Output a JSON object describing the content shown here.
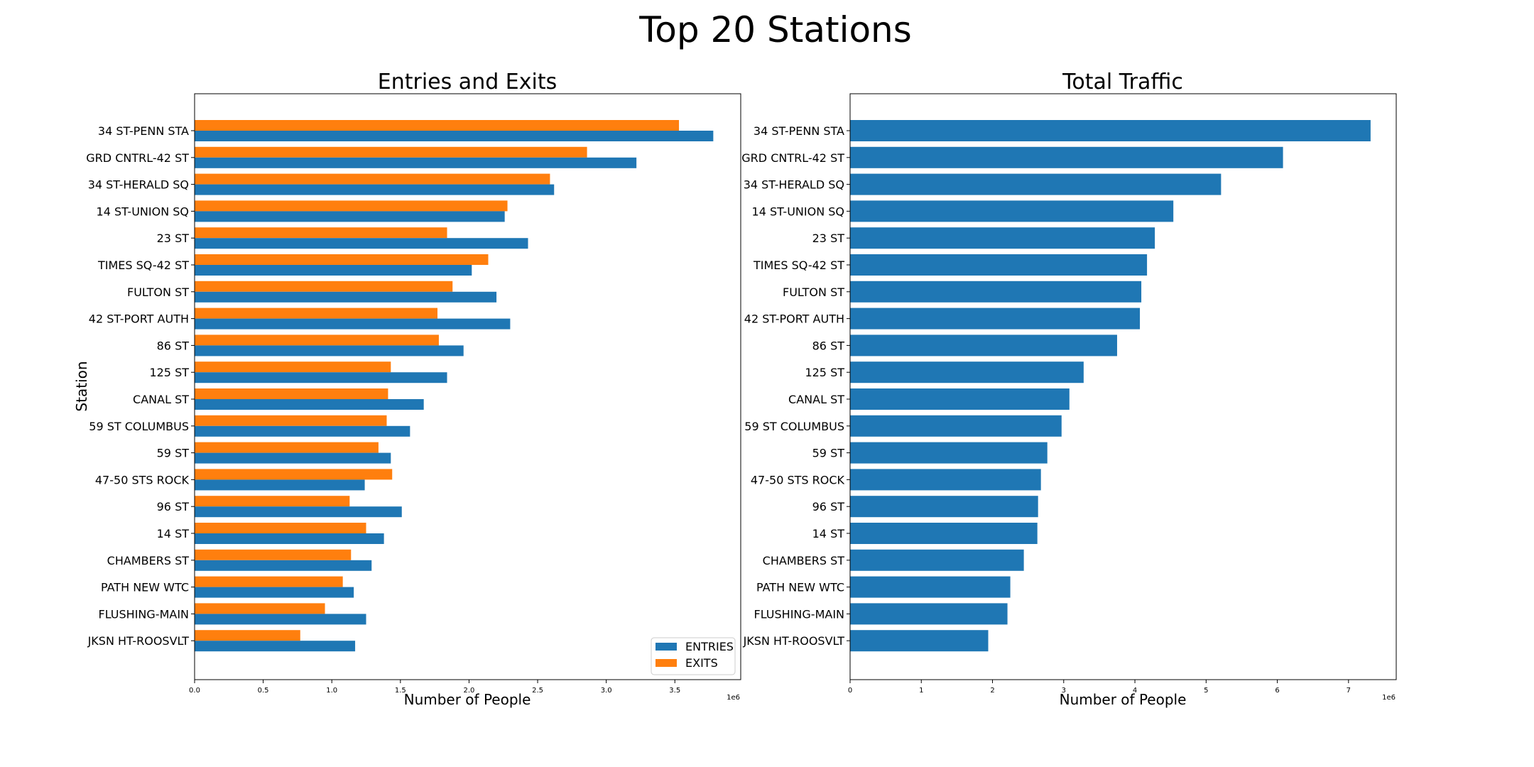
{
  "figure": {
    "title": "Top 20 Stations"
  },
  "chart_data": [
    {
      "type": "bar",
      "orientation": "horizontal",
      "title": "Entries and Exits",
      "xlabel": "Number of People",
      "ylabel": "Station",
      "offset_text": "1e6",
      "xlim": [
        0,
        3.98
      ],
      "x_ticks": [
        0.0,
        0.5,
        1.0,
        1.5,
        2.0,
        2.5,
        3.0,
        3.5
      ],
      "x_tick_labels": [
        "0.0",
        "0.5",
        "1.0",
        "1.5",
        "2.0",
        "2.5",
        "3.0",
        "3.5"
      ],
      "legend_position": "lower-right",
      "grid": false,
      "categories": [
        "34 ST-PENN STA",
        "GRD CNTRL-42 ST",
        "34 ST-HERALD SQ",
        "14 ST-UNION SQ",
        "23 ST",
        "TIMES SQ-42 ST",
        "FULTON ST",
        "42 ST-PORT AUTH",
        "86 ST",
        "125 ST",
        "CANAL ST",
        "59 ST COLUMBUS",
        "59 ST",
        "47-50 STS ROCK",
        "96 ST",
        "14 ST",
        "CHAMBERS ST",
        "PATH NEW WTC",
        "FLUSHING-MAIN",
        "JKSN HT-ROOSVLT"
      ],
      "series": [
        {
          "name": "ENTRIES",
          "color": "#1f77b4",
          "values": [
            3.78,
            3.22,
            2.62,
            2.26,
            2.43,
            2.02,
            2.2,
            2.3,
            1.96,
            1.84,
            1.67,
            1.57,
            1.43,
            1.24,
            1.51,
            1.38,
            1.29,
            1.16,
            1.25,
            1.17
          ]
        },
        {
          "name": "EXITS",
          "color": "#ff7f0e",
          "values": [
            3.53,
            2.86,
            2.59,
            2.28,
            1.84,
            2.14,
            1.88,
            1.77,
            1.78,
            1.43,
            1.41,
            1.4,
            1.34,
            1.44,
            1.13,
            1.25,
            1.14,
            1.08,
            0.95,
            0.77
          ]
        }
      ]
    },
    {
      "type": "bar",
      "orientation": "horizontal",
      "title": "Total Traffic",
      "xlabel": "Number of People",
      "offset_text": "1e6",
      "xlim": [
        0,
        7.67
      ],
      "x_ticks": [
        0,
        1,
        2,
        3,
        4,
        5,
        6,
        7
      ],
      "x_tick_labels": [
        "0",
        "1",
        "2",
        "3",
        "4",
        "5",
        "6",
        "7"
      ],
      "grid": false,
      "categories": [
        "34 ST-PENN STA",
        "GRD CNTRL-42 ST",
        "34 ST-HERALD SQ",
        "14 ST-UNION SQ",
        "23 ST",
        "TIMES SQ-42 ST",
        "FULTON ST",
        "42 ST-PORT AUTH",
        "86 ST",
        "125 ST",
        "CANAL ST",
        "59 ST COLUMBUS",
        "59 ST",
        "47-50 STS ROCK",
        "96 ST",
        "14 ST",
        "CHAMBERS ST",
        "PATH NEW WTC",
        "FLUSHING-MAIN",
        "JKSN HT-ROOSVLT"
      ],
      "series": [
        {
          "color": "#1f77b4",
          "values": [
            7.31,
            6.08,
            5.21,
            4.54,
            4.28,
            4.17,
            4.09,
            4.07,
            3.75,
            3.28,
            3.08,
            2.97,
            2.77,
            2.68,
            2.64,
            2.63,
            2.44,
            2.25,
            2.21,
            1.94
          ]
        }
      ]
    }
  ]
}
